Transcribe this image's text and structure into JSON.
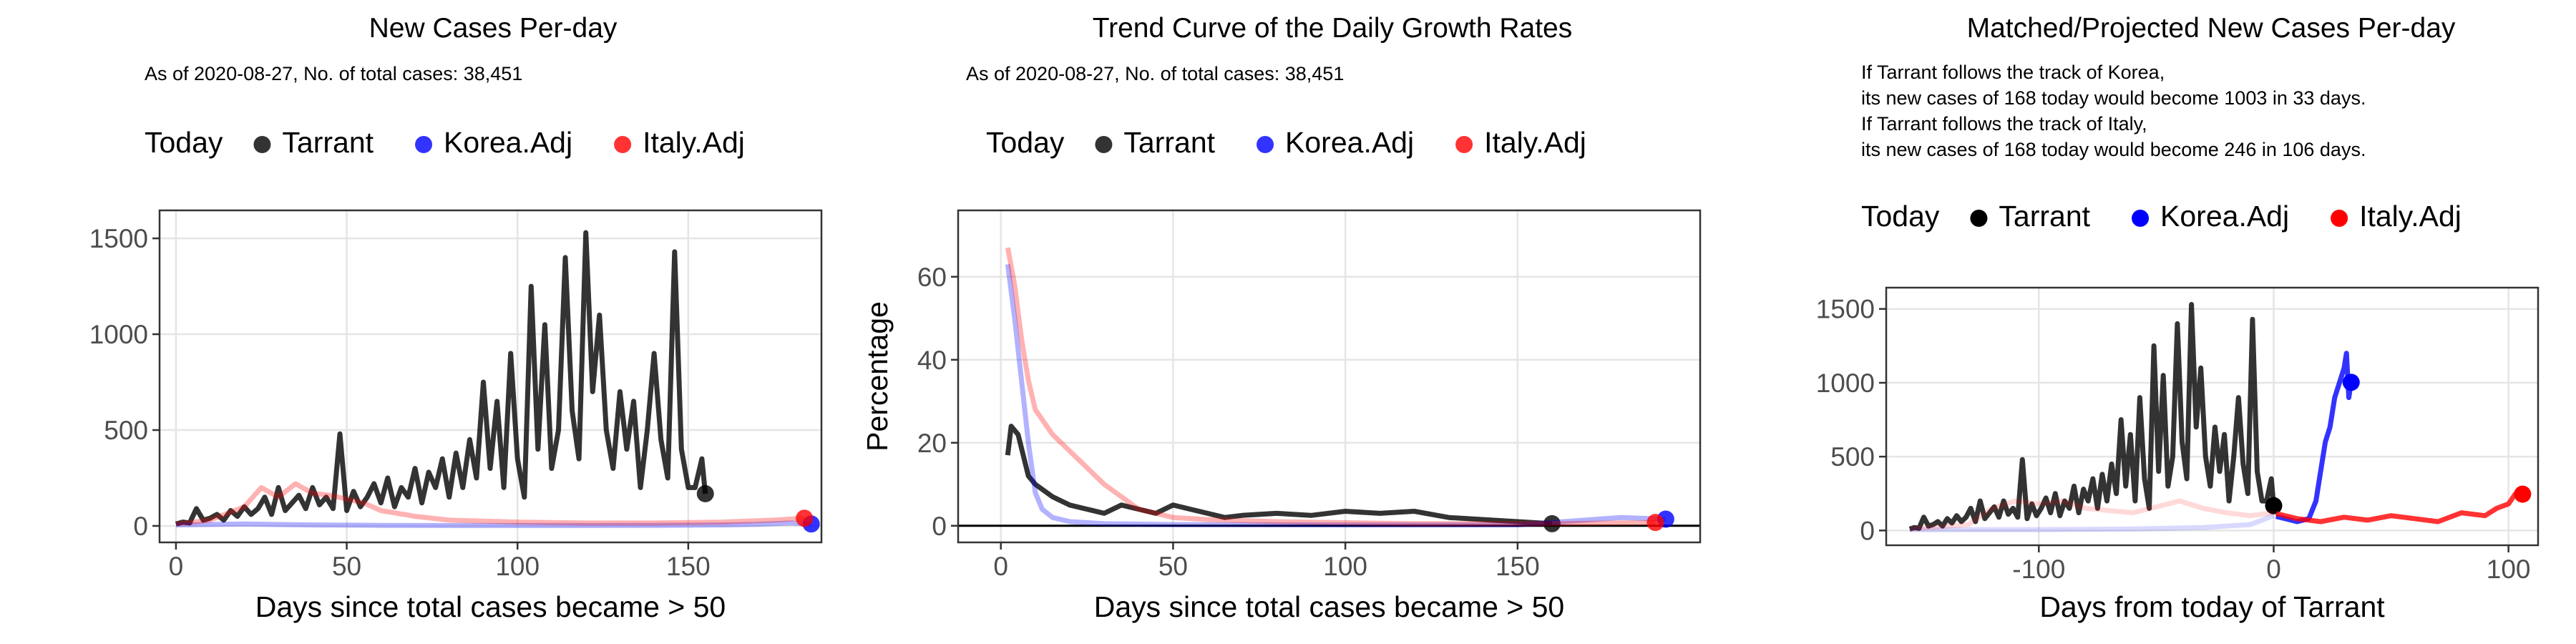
{
  "chart_data": [
    {
      "type": "line",
      "title": "New Cases Per-day",
      "subtitle": "As of 2020-08-27, No. of total cases: 38,451",
      "legend_title": "Today",
      "x_label": "Days since total cases became > 50",
      "xlim": [
        -4.8,
        189
      ],
      "xticks": [
        0,
        50,
        100,
        150
      ],
      "ylim": [
        -86,
        1646
      ],
      "yticks": [
        0,
        500,
        1000,
        1500
      ],
      "grid": true,
      "series": [
        {
          "name": "Tarrant",
          "color": "#000000",
          "x": [
            0,
            2,
            4,
            6,
            8,
            10,
            12,
            14,
            16,
            18,
            20,
            22,
            24,
            26,
            28,
            30,
            32,
            34,
            36,
            38,
            40,
            42,
            44,
            46,
            48,
            50,
            52,
            54,
            56,
            58,
            60,
            62,
            64,
            66,
            68,
            70,
            72,
            74,
            76,
            78,
            80,
            82,
            84,
            86,
            88,
            90,
            92,
            94,
            96,
            98,
            100,
            102,
            104,
            106,
            108,
            110,
            112,
            114,
            116,
            118,
            120,
            122,
            124,
            126,
            128,
            130,
            132,
            134,
            136,
            138,
            140,
            142,
            144,
            146,
            148,
            150,
            152,
            154,
            155
          ],
          "values": [
            10,
            20,
            15,
            90,
            30,
            40,
            60,
            30,
            80,
            50,
            100,
            60,
            90,
            150,
            60,
            200,
            80,
            120,
            160,
            90,
            200,
            110,
            150,
            90,
            480,
            80,
            180,
            100,
            150,
            220,
            120,
            250,
            100,
            200,
            150,
            300,
            120,
            280,
            200,
            350,
            150,
            380,
            200,
            450,
            250,
            750,
            300,
            650,
            200,
            900,
            350,
            150,
            1250,
            400,
            1050,
            300,
            500,
            1400,
            600,
            350,
            1530,
            700,
            1100,
            500,
            300,
            700,
            400,
            650,
            200,
            500,
            900,
            450,
            250,
            1430,
            400,
            200,
            200,
            350,
            168
          ]
        },
        {
          "name": "Korea.Adj",
          "color": "#0000ff",
          "x": [
            0,
            20,
            40,
            60,
            80,
            100,
            120,
            140,
            160,
            170,
            180,
            186
          ],
          "values": [
            5,
            10,
            5,
            3,
            2,
            2,
            2,
            3,
            5,
            8,
            15,
            10
          ]
        },
        {
          "name": "Italy.Adj",
          "color": "#ff0000",
          "x": [
            0,
            10,
            20,
            25,
            30,
            35,
            40,
            45,
            50,
            55,
            60,
            70,
            80,
            100,
            120,
            140,
            160,
            175,
            184
          ],
          "values": [
            10,
            30,
            100,
            200,
            150,
            220,
            170,
            160,
            140,
            120,
            80,
            50,
            30,
            20,
            15,
            15,
            20,
            30,
            40
          ]
        }
      ]
    },
    {
      "type": "line",
      "title": "Trend Curve of the Daily Growth Rates",
      "subtitle": "As of 2020-08-27, No. of total cases: 38,451",
      "legend_title": "Today",
      "x_label": "Days since total cases became > 50",
      "y_label": "Percentage",
      "xlim": [
        -12.4,
        203
      ],
      "xticks": [
        0,
        50,
        100,
        150
      ],
      "ylim": [
        -4,
        76
      ],
      "yticks": [
        0,
        20,
        40,
        60
      ],
      "grid": true,
      "hline": 0,
      "series": [
        {
          "name": "Tarrant",
          "color": "#000000",
          "x": [
            2,
            3,
            5,
            8,
            10,
            15,
            20,
            25,
            30,
            35,
            40,
            45,
            50,
            55,
            60,
            65,
            70,
            80,
            90,
            100,
            110,
            120,
            130,
            140,
            150,
            160
          ],
          "values": [
            17,
            24,
            22,
            12,
            10,
            7,
            5,
            4,
            3,
            5,
            4,
            3,
            5,
            4,
            3,
            2,
            2.5,
            3,
            2.5,
            3.5,
            3,
            3.5,
            2,
            1.5,
            1,
            0.5
          ]
        },
        {
          "name": "Korea.Adj",
          "color": "#0000ff",
          "x": [
            2,
            4,
            6,
            8,
            10,
            12,
            15,
            20,
            30,
            50,
            100,
            150,
            180,
            193
          ],
          "values": [
            63,
            50,
            35,
            20,
            8,
            4,
            2,
            1,
            0.5,
            0.3,
            0.2,
            0.2,
            2,
            1.6
          ]
        },
        {
          "name": "Italy.Adj",
          "color": "#ff0000",
          "x": [
            2,
            4,
            6,
            8,
            10,
            15,
            20,
            25,
            30,
            35,
            40,
            50,
            60,
            80,
            120,
            160,
            190
          ],
          "values": [
            67,
            58,
            45,
            35,
            28,
            22,
            18,
            14,
            10,
            7,
            4,
            2,
            1.5,
            1,
            0.5,
            0.5,
            0.8
          ]
        }
      ]
    },
    {
      "type": "line",
      "title": "Matched/Projected New Cases Per-day",
      "annotation": [
        "If Tarrant follows the track of Korea,",
        "its new cases of 168 today would become 1003 in 33 days.",
        "If Tarrant follows the track of Italy,",
        "its new cases of 168 today would become 246 in 106 days."
      ],
      "legend_title": "Today",
      "x_label": "Days from today of Tarrant",
      "xlim": [
        -165,
        112.6
      ],
      "xticks": [
        -100,
        0,
        100
      ],
      "ylim": [
        -100,
        1644
      ],
      "yticks": [
        0,
        500,
        1000,
        1500
      ],
      "grid": true,
      "series": [
        {
          "name": "Tarrant",
          "color": "#000000",
          "x": [
            -155,
            -153,
            -151,
            -149,
            -147,
            -145,
            -143,
            -141,
            -139,
            -137,
            -135,
            -133,
            -131,
            -129,
            -127,
            -125,
            -123,
            -121,
            -119,
            -117,
            -115,
            -113,
            -111,
            -109,
            -107,
            -105,
            -103,
            -101,
            -99,
            -97,
            -95,
            -93,
            -91,
            -89,
            -87,
            -85,
            -83,
            -81,
            -79,
            -77,
            -75,
            -73,
            -71,
            -69,
            -67,
            -65,
            -63,
            -61,
            -59,
            -57,
            -55,
            -53,
            -51,
            -49,
            -47,
            -45,
            -43,
            -41,
            -39,
            -37,
            -35,
            -33,
            -31,
            -29,
            -27,
            -25,
            -23,
            -21,
            -19,
            -17,
            -15,
            -13,
            -11,
            -9,
            -7,
            -5,
            -3,
            -1,
            0
          ],
          "values": [
            10,
            20,
            15,
            90,
            30,
            40,
            60,
            30,
            80,
            50,
            100,
            60,
            90,
            150,
            60,
            200,
            80,
            120,
            160,
            90,
            200,
            110,
            150,
            90,
            480,
            80,
            180,
            100,
            150,
            220,
            120,
            250,
            100,
            200,
            150,
            300,
            120,
            280,
            200,
            350,
            150,
            380,
            200,
            450,
            250,
            750,
            300,
            650,
            200,
            900,
            350,
            150,
            1250,
            400,
            1050,
            300,
            500,
            1400,
            600,
            350,
            1530,
            700,
            1100,
            500,
            300,
            700,
            400,
            650,
            200,
            500,
            900,
            450,
            250,
            1430,
            400,
            200,
            200,
            350,
            168
          ]
        },
        {
          "name": "Korea.Adj",
          "color": "#0000ff",
          "x": [
            -155,
            -100,
            -60,
            -30,
            -10,
            0,
            1,
            5,
            10,
            15,
            18,
            20,
            22,
            24,
            26,
            28,
            30,
            31,
            32,
            33
          ],
          "values": [
            5,
            5,
            10,
            20,
            40,
            100,
            95,
            80,
            60,
            80,
            200,
            400,
            600,
            700,
            900,
            1000,
            1100,
            1200,
            900,
            1003
          ]
        },
        {
          "name": "Italy.Adj",
          "color": "#ff0000",
          "x": [
            -155,
            -130,
            -120,
            -110,
            -100,
            -90,
            -80,
            -60,
            -40,
            -30,
            -20,
            -10,
            0,
            1,
            10,
            20,
            30,
            40,
            50,
            60,
            70,
            80,
            90,
            95,
            100,
            103,
            105,
            106
          ],
          "values": [
            10,
            40,
            150,
            200,
            180,
            200,
            150,
            120,
            200,
            150,
            120,
            100,
            120,
            115,
            80,
            60,
            90,
            70,
            100,
            80,
            60,
            120,
            100,
            150,
            180,
            250,
            220,
            246
          ]
        }
      ]
    }
  ]
}
